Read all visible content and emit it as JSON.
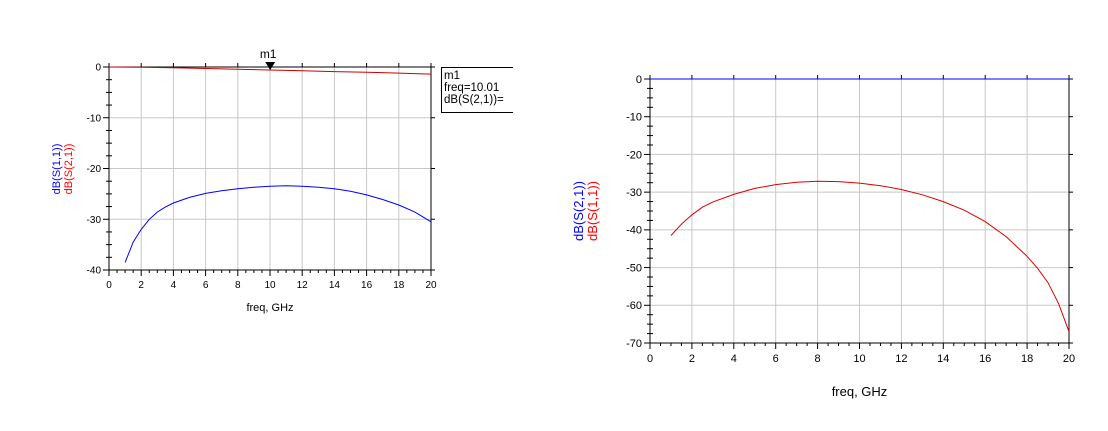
{
  "chart_data": [
    {
      "type": "line",
      "xlabel": "freq, GHz",
      "xlim": [
        0,
        20
      ],
      "ylim": [
        -40,
        0
      ],
      "xticks": [
        "0",
        "2",
        "4",
        "6",
        "8",
        "10",
        "12",
        "14",
        "16",
        "18",
        "20"
      ],
      "yticks": [
        "0",
        "-10",
        "-20",
        "-30",
        "-40"
      ],
      "ylabels": [
        {
          "text": "dB(S(1,1))",
          "color": "#0000ff"
        },
        {
          "text": "dB(S(2,1))",
          "color": "#ff0000"
        }
      ],
      "grid": true,
      "series": [
        {
          "name": "dB(S(1,1))",
          "color": "#0000ff",
          "x": [
            1,
            1.5,
            2,
            2.5,
            3,
            3.5,
            4,
            5,
            6,
            7,
            8,
            9,
            10,
            11,
            12,
            13,
            14,
            15,
            16,
            17,
            18,
            19,
            20
          ],
          "y": [
            -38.5,
            -34.5,
            -32.0,
            -30.0,
            -28.6,
            -27.6,
            -26.8,
            -25.7,
            -24.9,
            -24.4,
            -24.0,
            -23.7,
            -23.5,
            -23.4,
            -23.5,
            -23.7,
            -24.0,
            -24.5,
            -25.2,
            -26.1,
            -27.2,
            -28.6,
            -30.5
          ]
        },
        {
          "name": "dB(S(2,1))",
          "color": "#cc0000",
          "x": [
            0,
            2,
            4,
            6,
            8,
            10,
            12,
            14,
            16,
            18,
            20
          ],
          "y": [
            0,
            -0.05,
            -0.15,
            -0.3,
            -0.45,
            -0.6,
            -0.75,
            -0.9,
            -1.05,
            -1.2,
            -1.4
          ]
        }
      ],
      "marker": {
        "name": "m1",
        "x": 10.01,
        "y": -0.6,
        "readout": [
          "m1",
          "freq=10.01",
          "dB(S(2,1))="
        ]
      }
    },
    {
      "type": "line",
      "xlabel": "freq, GHz",
      "xlim": [
        0,
        20
      ],
      "ylim": [
        -70,
        0
      ],
      "xticks": [
        "0",
        "2",
        "4",
        "6",
        "8",
        "10",
        "12",
        "14",
        "16",
        "18",
        "20"
      ],
      "yticks": [
        "0",
        "-10",
        "-20",
        "-30",
        "-40",
        "-50",
        "-60",
        "-70"
      ],
      "ylabels": [
        {
          "text": "dB(S(2,1))",
          "color": "#0000ff"
        },
        {
          "text": "dB(S(1,1))",
          "color": "#ff0000"
        }
      ],
      "grid": true,
      "series": [
        {
          "name": "dB(S(2,1))",
          "color": "#0000ff",
          "x": [
            0,
            20
          ],
          "y": [
            0,
            0
          ]
        },
        {
          "name": "dB(S(1,1))",
          "color": "#dd0000",
          "x": [
            1,
            1.5,
            2,
            2.5,
            3,
            4,
            5,
            6,
            7,
            8,
            9,
            10,
            11,
            12,
            13,
            14,
            15,
            16,
            17,
            18,
            18.5,
            19,
            19.5,
            20
          ],
          "y": [
            -41.5,
            -38.5,
            -36.0,
            -34.0,
            -32.6,
            -30.6,
            -29.0,
            -28.0,
            -27.4,
            -27.1,
            -27.2,
            -27.6,
            -28.3,
            -29.3,
            -30.7,
            -32.5,
            -34.8,
            -37.8,
            -41.8,
            -47.0,
            -50.2,
            -54.0,
            -59.5,
            -67.0
          ]
        }
      ]
    }
  ]
}
